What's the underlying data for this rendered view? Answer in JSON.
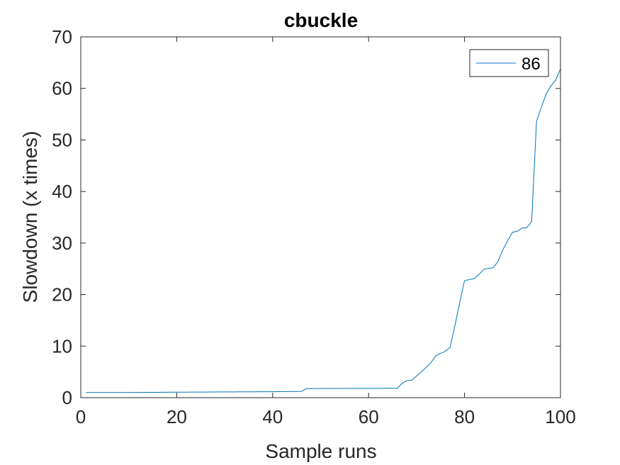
{
  "chart_data": {
    "type": "line",
    "title": "cbuckle",
    "xlabel": "Sample runs",
    "ylabel": "Slowdown (x times)",
    "xlim": [
      0,
      100
    ],
    "ylim": [
      0,
      70
    ],
    "xticks": [
      0,
      20,
      40,
      60,
      80,
      100
    ],
    "yticks": [
      0,
      10,
      20,
      30,
      40,
      50,
      60,
      70
    ],
    "grid": false,
    "legend_position": "top-right",
    "series": [
      {
        "name": "86",
        "color": "#0072BD",
        "x": [
          1,
          2,
          3,
          4,
          5,
          6,
          7,
          8,
          9,
          10,
          11,
          12,
          13,
          14,
          15,
          16,
          17,
          18,
          19,
          20,
          21,
          22,
          23,
          24,
          25,
          26,
          27,
          28,
          29,
          30,
          31,
          32,
          33,
          34,
          35,
          36,
          37,
          38,
          39,
          40,
          41,
          42,
          43,
          44,
          45,
          46,
          47,
          48,
          49,
          50,
          51,
          52,
          53,
          54,
          55,
          56,
          57,
          58,
          59,
          60,
          61,
          62,
          63,
          64,
          65,
          66,
          67,
          68,
          69,
          70,
          71,
          72,
          73,
          74,
          75,
          76,
          77,
          78,
          79,
          80,
          81,
          82,
          83,
          84,
          85,
          86,
          87,
          88,
          89,
          90,
          91,
          92,
          93,
          94,
          95,
          96,
          97,
          98,
          99,
          100
        ],
        "y": [
          1.0,
          1.0,
          1.0,
          1.0,
          1.0,
          1.0,
          1.0,
          1.0,
          1.0,
          1.0,
          1.02,
          1.02,
          1.03,
          1.03,
          1.04,
          1.04,
          1.05,
          1.05,
          1.06,
          1.06,
          1.07,
          1.07,
          1.08,
          1.08,
          1.09,
          1.09,
          1.1,
          1.1,
          1.11,
          1.11,
          1.12,
          1.12,
          1.13,
          1.13,
          1.14,
          1.14,
          1.15,
          1.15,
          1.16,
          1.16,
          1.17,
          1.17,
          1.18,
          1.18,
          1.19,
          1.2,
          1.75,
          1.76,
          1.77,
          1.77,
          1.78,
          1.78,
          1.79,
          1.79,
          1.8,
          1.8,
          1.8,
          1.8,
          1.81,
          1.81,
          1.81,
          1.81,
          1.82,
          1.82,
          1.82,
          1.83,
          2.8,
          3.3,
          3.4,
          4.2,
          5.0,
          5.9,
          6.8,
          8.1,
          8.6,
          9.0,
          9.8,
          14.0,
          18.5,
          22.7,
          22.9,
          23.1,
          23.9,
          24.9,
          25.1,
          25.2,
          26.5,
          28.7,
          30.5,
          32.1,
          32.3,
          32.9,
          33.0,
          34.2,
          53.6,
          56.3,
          58.9,
          60.5,
          61.6,
          63.8
        ]
      }
    ]
  }
}
